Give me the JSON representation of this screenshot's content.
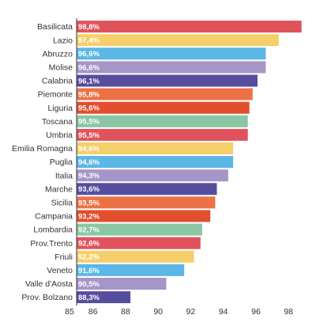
{
  "chart_data": {
    "type": "bar",
    "orientation": "horizontal",
    "categories": [
      "Basilicata",
      "Lazio",
      "Abruzzo",
      "Molise",
      "Calabria",
      "Piemonte",
      "Liguria",
      "Toscana",
      "Umbria",
      "Emilia Romagna",
      "Puglia",
      "Italia",
      "Marche",
      "Sicilia",
      "Campania",
      "Lombardia",
      "Prov.Trento",
      "Friuli",
      "Veneto",
      "Valle d'Aosta",
      "Prov. Bolzano"
    ],
    "values": [
      98.8,
      97.4,
      96.6,
      96.6,
      96.1,
      95.8,
      95.6,
      95.5,
      95.5,
      94.6,
      94.6,
      94.3,
      93.6,
      93.5,
      93.2,
      92.7,
      92.6,
      92.2,
      91.6,
      90.5,
      88.3
    ],
    "value_labels": [
      "98,8%",
      "97,4%",
      "96,6%",
      "96,6%",
      "96,1%",
      "95,8%",
      "95,6%",
      "95,5%",
      "95,5%",
      "94,6%",
      "94,6%",
      "94,3%",
      "93,6%",
      "93,5%",
      "93,2%",
      "92,7%",
      "92,6%",
      "92,2%",
      "91,6%",
      "90,5%",
      "88,3%"
    ],
    "colors": [
      "#e0535c",
      "#f5cf6a",
      "#5bb7e6",
      "#a695c9",
      "#574d9e",
      "#ec7246",
      "#e24e2e",
      "#8ac6a4",
      "#e0535c",
      "#f5cf6a",
      "#5bb7e6",
      "#a695c9",
      "#574d9e",
      "#ec7246",
      "#e24e2e",
      "#8ac6a4",
      "#e0535c",
      "#f5cf6a",
      "#5bb7e6",
      "#a695c9",
      "#574d9e"
    ],
    "xlim": [
      85,
      99.2
    ],
    "xticks": [
      85,
      86,
      88,
      90,
      92,
      94,
      96,
      98
    ],
    "tick_labels": [
      "85",
      "86",
      "88",
      "90",
      "92",
      "94",
      "96",
      "98"
    ],
    "title": "",
    "xlabel": "",
    "ylabel": "",
    "grid": false,
    "legend": "none"
  }
}
